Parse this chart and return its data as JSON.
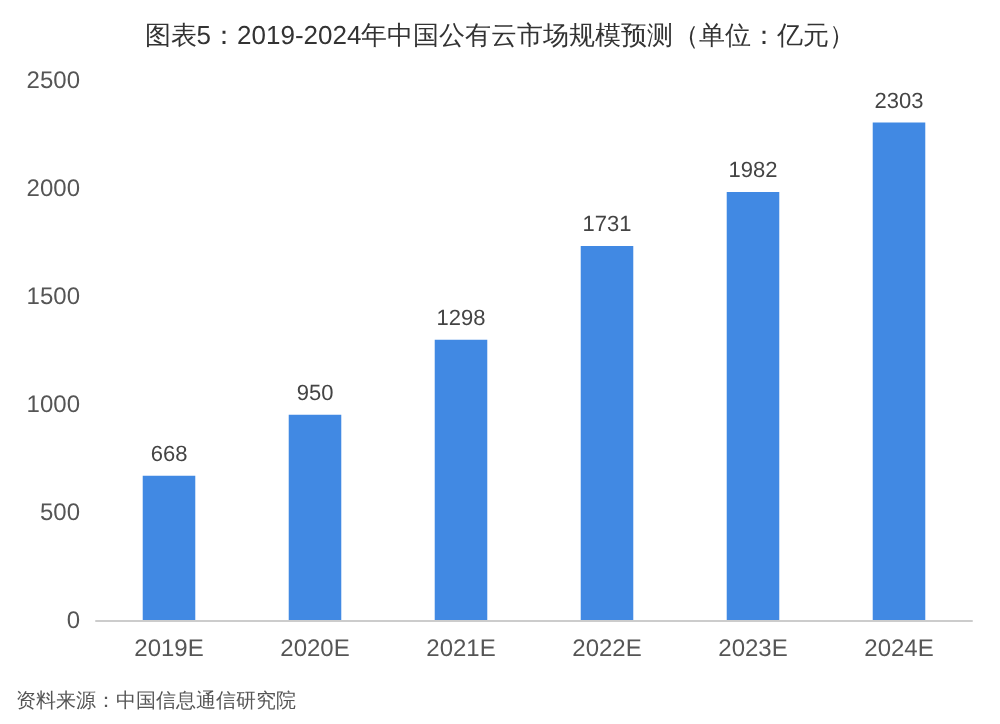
{
  "chart_data": {
    "type": "bar",
    "title": "图表5：2019-2024年中国公有云市场规模预测（单位：亿元）",
    "categories": [
      "2019E",
      "2020E",
      "2021E",
      "2022E",
      "2023E",
      "2024E"
    ],
    "values": [
      668,
      950,
      1298,
      1731,
      1982,
      2303
    ],
    "color": "#4189e3",
    "ylim": [
      0,
      2500
    ],
    "yticks": [
      0,
      500,
      1000,
      1500,
      2000,
      2500
    ],
    "grid": false,
    "data_labels": true,
    "annotations": [
      "资料来源：中国信息通信研究院"
    ]
  }
}
